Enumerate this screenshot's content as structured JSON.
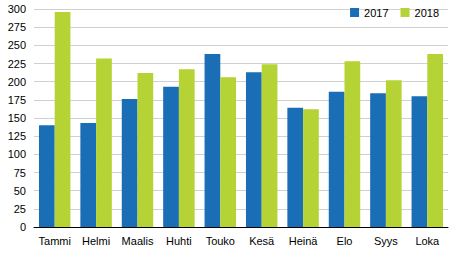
{
  "chart_data": {
    "type": "bar",
    "categories": [
      "Tammi",
      "Helmi",
      "Maalis",
      "Huhti",
      "Touko",
      "Kesä",
      "Heinä",
      "Elo",
      "Syys",
      "Loka"
    ],
    "series": [
      {
        "name": "2017",
        "color": "#1a6eb5",
        "values": [
          140,
          143,
          176,
          193,
          238,
          213,
          164,
          186,
          184,
          180
        ]
      },
      {
        "name": "2018",
        "color": "#b5d334",
        "values": [
          296,
          232,
          212,
          217,
          206,
          224,
          162,
          228,
          202,
          238
        ]
      }
    ],
    "ylim": [
      0,
      300
    ],
    "yticks": [
      0,
      25,
      50,
      75,
      100,
      125,
      150,
      175,
      200,
      225,
      250,
      275,
      300
    ],
    "grid": true,
    "legend": "top-right"
  }
}
